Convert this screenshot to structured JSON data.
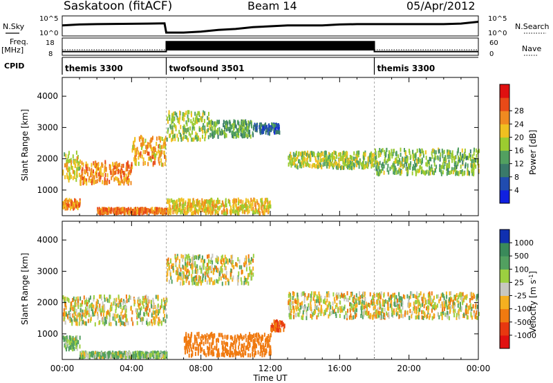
{
  "header": {
    "station": "Saskatoon (fitACF)",
    "beam": "Beam 14",
    "date": "05/Apr/2012"
  },
  "panel_labels": {
    "nsky": "N.Sky",
    "nsearch": "N.Search",
    "freq": "Freq.",
    "freq_unit": "[MHz]",
    "nave": "Nave",
    "cpid": "CPID"
  },
  "noise_axis": {
    "left_top": "10^5",
    "left_bottom": "10^0",
    "right_top": "10^5",
    "right_bottom": "10^0"
  },
  "freq_axis": {
    "left_top": "18",
    "left_bottom": "8",
    "right_top": "60",
    "right_bottom": "0"
  },
  "cpid_modes": [
    {
      "name": "themis 3300",
      "start": 0,
      "end": 6
    },
    {
      "name": "twofsound 3501",
      "start": 6,
      "end": 18
    },
    {
      "name": "themis 3300",
      "start": 18,
      "end": 24
    }
  ],
  "x_axis": {
    "label": "Time UT",
    "ticks": [
      "00:00",
      "04:00",
      "08:00",
      "12:00",
      "16:00",
      "20:00",
      "00:00"
    ],
    "range_hours": [
      0,
      24
    ]
  },
  "y_axis": {
    "label": "Slant Range [km]",
    "ticks": [
      "1000",
      "2000",
      "3000",
      "4000"
    ],
    "range_km": [
      180,
      4600
    ]
  },
  "power_scale": {
    "label": "Power [dB]",
    "ticks": [
      "4",
      "8",
      "12",
      "16",
      "20",
      "24",
      "28"
    ],
    "colors": [
      "#1020e0",
      "#204cb0",
      "#3a7a6a",
      "#52a060",
      "#9ccc30",
      "#f0c020",
      "#f08a20",
      "#e84a18",
      "#e01010"
    ]
  },
  "velocity_scale": {
    "label": "Velocity [m s",
    "label_sup": "-1",
    "label_end": "]",
    "ticks": [
      "1000",
      "500",
      "100",
      "25",
      "-25",
      "-100",
      "-500",
      "-1000"
    ],
    "colors": [
      "#1030b0",
      "#3a8a5a",
      "#52a060",
      "#9cd040",
      "#c8c8c0",
      "#f5b020",
      "#f07a10",
      "#e83810",
      "#e01010"
    ]
  },
  "chart_data": [
    {
      "type": "line",
      "name": "noise",
      "x": [
        0,
        1,
        2,
        3,
        4,
        5,
        5.9,
        6,
        7,
        8,
        9,
        10,
        11,
        12,
        13,
        14,
        15,
        16,
        17,
        18,
        19,
        20,
        21,
        22,
        23,
        24
      ],
      "nsky": [
        0.55,
        0.6,
        0.62,
        0.63,
        0.64,
        0.65,
        0.66,
        0.15,
        0.15,
        0.2,
        0.3,
        0.35,
        0.45,
        0.5,
        0.55,
        0.55,
        0.55,
        0.6,
        0.62,
        0.62,
        0.62,
        0.62,
        0.62,
        0.62,
        0.65,
        0.75
      ]
    },
    {
      "type": "line",
      "name": "frequency",
      "x": [
        0,
        6,
        6,
        18,
        18,
        24
      ],
      "freq_level": [
        0.2,
        0.2,
        0.85,
        0.85,
        0.2,
        0.2
      ]
    },
    {
      "type": "heatmap",
      "name": "power",
      "x_range_hours": [
        0,
        24
      ],
      "y_range_km": [
        180,
        4600
      ],
      "value_label": "Power [dB]",
      "scatter_bands": [
        {
          "t": [
            0.0,
            1.0
          ],
          "r": [
            1300,
            2200
          ],
          "v": 20
        },
        {
          "t": [
            1.0,
            4.0
          ],
          "r": [
            1200,
            1900
          ],
          "v": 26
        },
        {
          "t": [
            4.0,
            6.0
          ],
          "r": [
            1800,
            2700
          ],
          "v": 24
        },
        {
          "t": [
            6.0,
            8.5
          ],
          "r": [
            2600,
            3500
          ],
          "v": 18
        },
        {
          "t": [
            8.5,
            11.0
          ],
          "r": [
            2700,
            3200
          ],
          "v": 14
        },
        {
          "t": [
            11.0,
            12.5
          ],
          "r": [
            2800,
            3100
          ],
          "v": 8
        },
        {
          "t": [
            13.0,
            18.0
          ],
          "r": [
            1700,
            2200
          ],
          "v": 18
        },
        {
          "t": [
            18.0,
            24.0
          ],
          "r": [
            1500,
            2300
          ],
          "v": 16
        },
        {
          "t": [
            0.0,
            1.0
          ],
          "r": [
            400,
            700
          ],
          "v": 26
        },
        {
          "t": [
            2.0,
            6.0
          ],
          "r": [
            250,
            400
          ],
          "v": 28
        },
        {
          "t": [
            6.0,
            12.0
          ],
          "r": [
            250,
            700
          ],
          "v": 22
        }
      ]
    },
    {
      "type": "heatmap",
      "name": "velocity",
      "x_range_hours": [
        0,
        24
      ],
      "y_range_km": [
        180,
        4600
      ],
      "value_label": "Velocity [m s-1]",
      "scatter_bands": [
        {
          "t": [
            0.0,
            1.0
          ],
          "r": [
            500,
            900
          ],
          "v": 100
        },
        {
          "t": [
            1.0,
            6.0
          ],
          "r": [
            250,
            400
          ],
          "v": 100
        },
        {
          "t": [
            0.0,
            6.0
          ],
          "r": [
            1300,
            2200
          ],
          "v": 0
        },
        {
          "t": [
            6.0,
            11.0
          ],
          "r": [
            2600,
            3500
          ],
          "v": 0
        },
        {
          "t": [
            13.0,
            24.0
          ],
          "r": [
            1500,
            2300
          ],
          "v": 0
        },
        {
          "t": [
            7.0,
            12.0
          ],
          "r": [
            300,
            1000
          ],
          "v": -300
        },
        {
          "t": [
            12.0,
            12.8
          ],
          "r": [
            1100,
            1400
          ],
          "v": -500
        }
      ]
    }
  ]
}
